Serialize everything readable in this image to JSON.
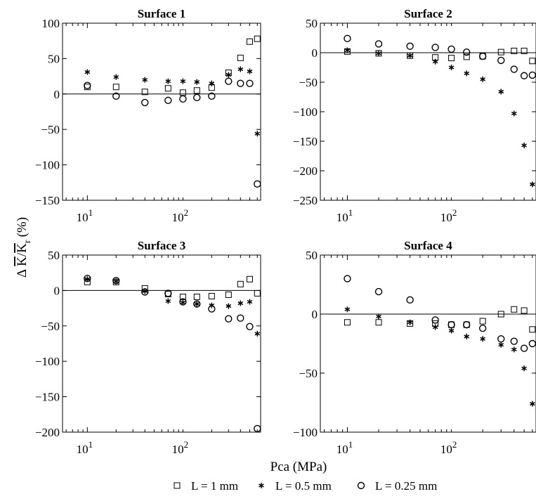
{
  "chart_data": {
    "type": "scatter",
    "x_scale": "log",
    "ylabel": "Δ K̄/K̄r (%)",
    "xlabel": "Pca (MPa)",
    "legend_position": "bottom",
    "grid": false,
    "series_styles": [
      {
        "name": "L = 1 mm",
        "marker": "square"
      },
      {
        "name": "L = 0.5 mm",
        "marker": "asterisk"
      },
      {
        "name": "L = 0.25 mm",
        "marker": "circle"
      }
    ],
    "x": [
      10,
      20,
      40,
      70,
      100,
      140,
      200,
      300,
      400,
      500,
      600
    ],
    "panels": [
      {
        "title": "Surface 1",
        "ylim": [
          -150,
          100
        ],
        "yticks": [
          -150,
          -100,
          -50,
          0,
          50,
          100
        ],
        "series": [
          {
            "name": "L = 1 mm",
            "values": [
              10,
              10,
              3,
              8,
              2,
              5,
              9,
              30,
              51,
              74,
              78
            ]
          },
          {
            "name": "L = 0.5 mm",
            "values": [
              31,
              24,
              20,
              18,
              18,
              17,
              15,
              27,
              35,
              32,
              -56
            ]
          },
          {
            "name": "L = 0.25 mm",
            "values": [
              12,
              -3,
              -12,
              -9,
              -7,
              -5,
              -3,
              18,
              15,
              15,
              -127
            ]
          }
        ]
      },
      {
        "title": "Surface 2",
        "ylim": [
          -250,
          50
        ],
        "yticks": [
          -250,
          -200,
          -150,
          -100,
          -50,
          0,
          50
        ],
        "series": [
          {
            "name": "L = 1 mm",
            "values": [
              2,
              -1,
              -5,
              -8,
              -9,
              -7,
              -6,
              1,
              3,
              3,
              -14
            ]
          },
          {
            "name": "L = 0.5 mm",
            "values": [
              4,
              -1,
              -5,
              -15,
              -25,
              -35,
              -45,
              -66,
              -103,
              -157,
              -223
            ]
          },
          {
            "name": "L = 0.25 mm",
            "values": [
              24,
              15,
              11,
              9,
              6,
              1,
              -6,
              -13,
              -28,
              -39,
              -38
            ]
          }
        ]
      },
      {
        "title": "Surface 3",
        "ylim": [
          -200,
          50
        ],
        "yticks": [
          -200,
          -150,
          -100,
          -50,
          0,
          50
        ],
        "series": [
          {
            "name": "L = 1 mm",
            "values": [
              12,
              12,
              3,
              -5,
              -9,
              -9,
              -8,
              -6,
              9,
              16,
              -4
            ]
          },
          {
            "name": "L = 0.5 mm",
            "values": [
              16,
              13,
              -1,
              -15,
              -17,
              -19,
              -21,
              -22,
              -18,
              -16,
              -61
            ]
          },
          {
            "name": "L = 0.25 mm",
            "values": [
              17,
              14,
              -2,
              -4,
              -16,
              -19,
              -26,
              -40,
              -39,
              -51,
              -195
            ]
          }
        ]
      },
      {
        "title": "Surface 4",
        "ylim": [
          -100,
          50
        ],
        "yticks": [
          -100,
          -50,
          0,
          50
        ],
        "series": [
          {
            "name": "L = 1 mm",
            "values": [
              -7,
              -7,
              -8,
              -8,
              -9,
              -9,
              -6,
              0,
              4,
              3,
              -13
            ]
          },
          {
            "name": "L = 0.5 mm",
            "values": [
              4,
              -2,
              -7,
              -11,
              -14,
              -19,
              -21,
              -26,
              -30,
              -46,
              -76
            ]
          },
          {
            "name": "L = 0.25 mm",
            "values": [
              30,
              19,
              12,
              -5,
              -9,
              -9,
              -12,
              -21,
              -23,
              -29,
              -25
            ]
          }
        ]
      }
    ]
  }
}
